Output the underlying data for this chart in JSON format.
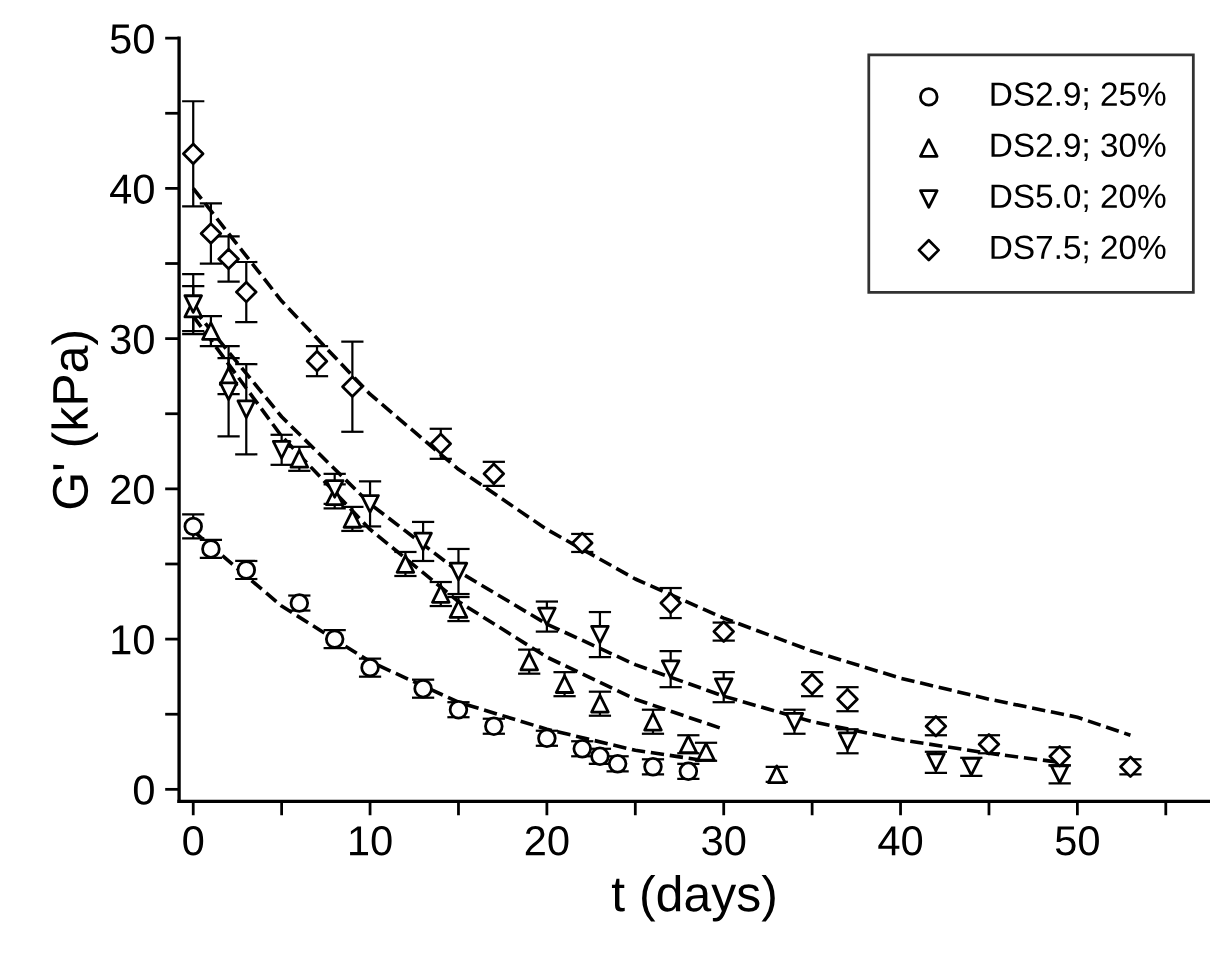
{
  "chart_data": {
    "type": "scatter",
    "xlabel": "t (days)",
    "ylabel": "G' (kPa)",
    "xlim": [
      -0.8,
      57.5
    ],
    "ylim": [
      -0.8,
      50
    ],
    "xticks": [
      0,
      {
        "value": 5,
        "label": null
      },
      10,
      {
        "value": 15,
        "label": null
      },
      20,
      {
        "value": 25,
        "label": null
      },
      30,
      {
        "value": 35,
        "label": null
      },
      40,
      {
        "value": 45,
        "label": null
      },
      50,
      {
        "value": 55,
        "label": null
      }
    ],
    "yticks": [
      0,
      {
        "value": 5,
        "label": null
      },
      10,
      {
        "value": 15,
        "label": null
      },
      20,
      {
        "value": 25,
        "label": null
      },
      30,
      {
        "value": 35,
        "label": null
      },
      40,
      {
        "value": 45,
        "label": null
      },
      50
    ],
    "grid": false,
    "legend": "top right",
    "series": [
      {
        "name": "DS2.9; 25%",
        "color": "#000000",
        "marker": "circle",
        "x": [
          0,
          1,
          3,
          6,
          8,
          10,
          13,
          15,
          17,
          20,
          22,
          23,
          24,
          26,
          28
        ],
        "values": [
          17.5,
          16,
          14.6,
          12.4,
          10,
          8.1,
          6.7,
          5.3,
          4.2,
          3.4,
          2.7,
          2.2,
          1.7,
          1.5,
          1.2
        ],
        "errors": [
          0.8,
          0.6,
          0.6,
          0.5,
          0.6,
          0.6,
          0.6,
          0.5,
          0.5,
          0.5,
          0.5,
          0.5,
          0.5,
          0.5,
          0.5
        ]
      },
      {
        "name": "DS2.9; 30%",
        "color": "#000000",
        "marker": "triangle",
        "x": [
          0,
          1,
          2,
          5,
          6,
          8,
          9,
          12,
          14,
          15,
          19,
          21,
          23,
          26,
          28,
          29,
          33
        ],
        "values": [
          32,
          30.5,
          27.5,
          null,
          22,
          19.5,
          18,
          15,
          13,
          12,
          8.5,
          7,
          5.7,
          4.5,
          3,
          2.5,
          1
        ],
        "errors": [
          1.5,
          1,
          1.2,
          null,
          0.8,
          0.8,
          0.8,
          0.8,
          0.8,
          0.8,
          0.8,
          0.8,
          0.8,
          0.8,
          0.6,
          0.6,
          0.5
        ]
      },
      {
        "name": "DS5.0; 20%",
        "color": "#000000",
        "marker": "triangle_down",
        "x": [
          0,
          2,
          3,
          5,
          8,
          10,
          13,
          15,
          20,
          23,
          27,
          30,
          34,
          37,
          42,
          44,
          49
        ],
        "values": [
          32.3,
          26.5,
          25.3,
          22.6,
          20,
          19,
          16.5,
          14.5,
          11.5,
          10.3,
          8,
          6.8,
          4.5,
          3.2,
          1.8,
          1.5,
          1
        ],
        "errors": [
          2,
          3,
          3,
          1,
          1,
          1.5,
          1.3,
          1.5,
          1,
          1.5,
          1.2,
          1,
          0.8,
          0.8,
          0.7,
          0.6,
          0.6
        ]
      },
      {
        "name": "DS7.5; 20%",
        "color": "#000000",
        "marker": "diamond",
        "x": [
          0,
          1,
          2,
          3,
          7,
          9,
          14,
          17,
          22,
          27,
          30,
          35,
          37,
          42,
          45,
          49,
          53
        ],
        "values": [
          42.3,
          37,
          35.3,
          33.1,
          28.5,
          26.8,
          23,
          21,
          16.4,
          12.4,
          10.5,
          7,
          6,
          4.2,
          3,
          2.2,
          1.5
        ],
        "errors": [
          3.5,
          2,
          1.5,
          2,
          1,
          3,
          1,
          0.8,
          0.6,
          1,
          0.6,
          0.8,
          0.8,
          0.6,
          0.6,
          0.6,
          0.5
        ]
      },
      {
        "type": "line",
        "line_style": "dashed",
        "color": "#000000",
        "x": [
          0,
          5,
          10,
          15,
          20,
          25,
          29
        ],
        "values": [
          17.2,
          12.2,
          8.5,
          5.8,
          4,
          2.6,
          1.9
        ]
      },
      {
        "type": "line",
        "line_style": "dashed",
        "color": "#000000",
        "x": [
          0,
          5,
          10,
          15,
          20,
          25,
          30
        ],
        "values": [
          31.5,
          23.5,
          17.3,
          12.5,
          8.8,
          6,
          4
        ]
      },
      {
        "type": "line",
        "line_style": "dashed",
        "color": "#000000",
        "x": [
          0,
          5,
          10,
          15,
          20,
          25,
          30,
          35,
          40,
          45,
          49
        ],
        "values": [
          32,
          24.8,
          19,
          14.5,
          11,
          8.3,
          6.2,
          4.5,
          3.3,
          2.4,
          1.8
        ]
      },
      {
        "type": "line",
        "line_style": "dashed",
        "color": "#000000",
        "x": [
          0,
          5,
          10,
          15,
          20,
          25,
          30,
          35,
          40,
          45,
          50,
          53
        ],
        "values": [
          40,
          32.5,
          26.3,
          21.3,
          17.3,
          14,
          11.4,
          9.2,
          7.4,
          6,
          4.8,
          3.6
        ]
      }
    ]
  }
}
